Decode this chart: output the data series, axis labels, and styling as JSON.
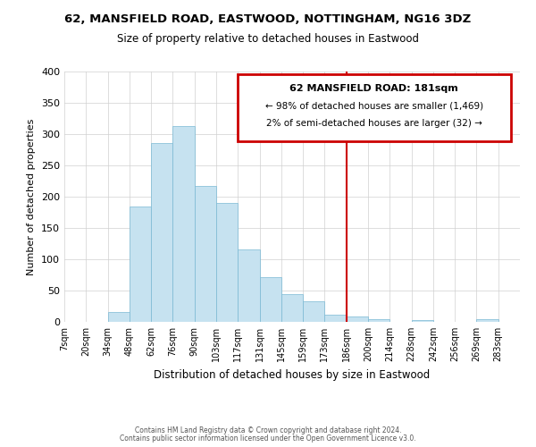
{
  "title": "62, MANSFIELD ROAD, EASTWOOD, NOTTINGHAM, NG16 3DZ",
  "subtitle": "Size of property relative to detached houses in Eastwood",
  "xlabel": "Distribution of detached houses by size in Eastwood",
  "ylabel": "Number of detached properties",
  "footer_line1": "Contains HM Land Registry data © Crown copyright and database right 2024.",
  "footer_line2": "Contains public sector information licensed under the Open Government Licence v3.0.",
  "bin_labels": [
    "7sqm",
    "20sqm",
    "34sqm",
    "48sqm",
    "62sqm",
    "76sqm",
    "90sqm",
    "103sqm",
    "117sqm",
    "131sqm",
    "145sqm",
    "159sqm",
    "173sqm",
    "186sqm",
    "200sqm",
    "214sqm",
    "228sqm",
    "242sqm",
    "256sqm",
    "269sqm",
    "283sqm"
  ],
  "bar_heights": [
    0,
    0,
    16,
    184,
    285,
    313,
    217,
    190,
    116,
    71,
    45,
    33,
    12,
    8,
    5,
    0,
    3,
    0,
    0,
    5,
    0
  ],
  "bar_color": "#c6e2f0",
  "bar_edge_color": "#7ab8d4",
  "property_line_x": 13,
  "property_line_color": "#cc0000",
  "annotation_title": "62 MANSFIELD ROAD: 181sqm",
  "annotation_line1": "← 98% of detached houses are smaller (1,469)",
  "annotation_line2": "2% of semi-detached houses are larger (32) →",
  "annotation_box_edge": "#cc0000",
  "ylim": [
    0,
    400
  ],
  "yticks": [
    0,
    50,
    100,
    150,
    200,
    250,
    300,
    350,
    400
  ]
}
